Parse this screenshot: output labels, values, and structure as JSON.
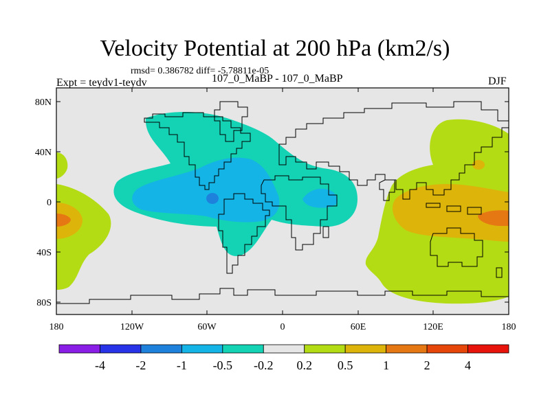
{
  "title": "Velocity Potential at 200 hPa (km2/s)",
  "stats": "rmsd= 0.386782 diff= -5.78811e-05",
  "experiment": "Expt = teydv1-teydv",
  "cases": "107_0_MaBP - 107_0_MaBP",
  "season": "DJF",
  "lat_ticks": [
    "80N",
    "40N",
    "0",
    "40S",
    "80S"
  ],
  "lon_ticks": [
    "180",
    "120W",
    "60W",
    "0",
    "60E",
    "120E",
    "180"
  ],
  "colorbar": {
    "colors": [
      "#8a1ee6",
      "#2832e6",
      "#1e82dc",
      "#14b4e6",
      "#14d2b4",
      "#e6e6e6",
      "#b4dc14",
      "#dcb40a",
      "#e67814",
      "#e6460a",
      "#e6140a"
    ],
    "labels": [
      "-4",
      "-2",
      "-1",
      "-0.5",
      "-0.2",
      "0.2",
      "0.5",
      "1",
      "2",
      "4"
    ]
  }
}
